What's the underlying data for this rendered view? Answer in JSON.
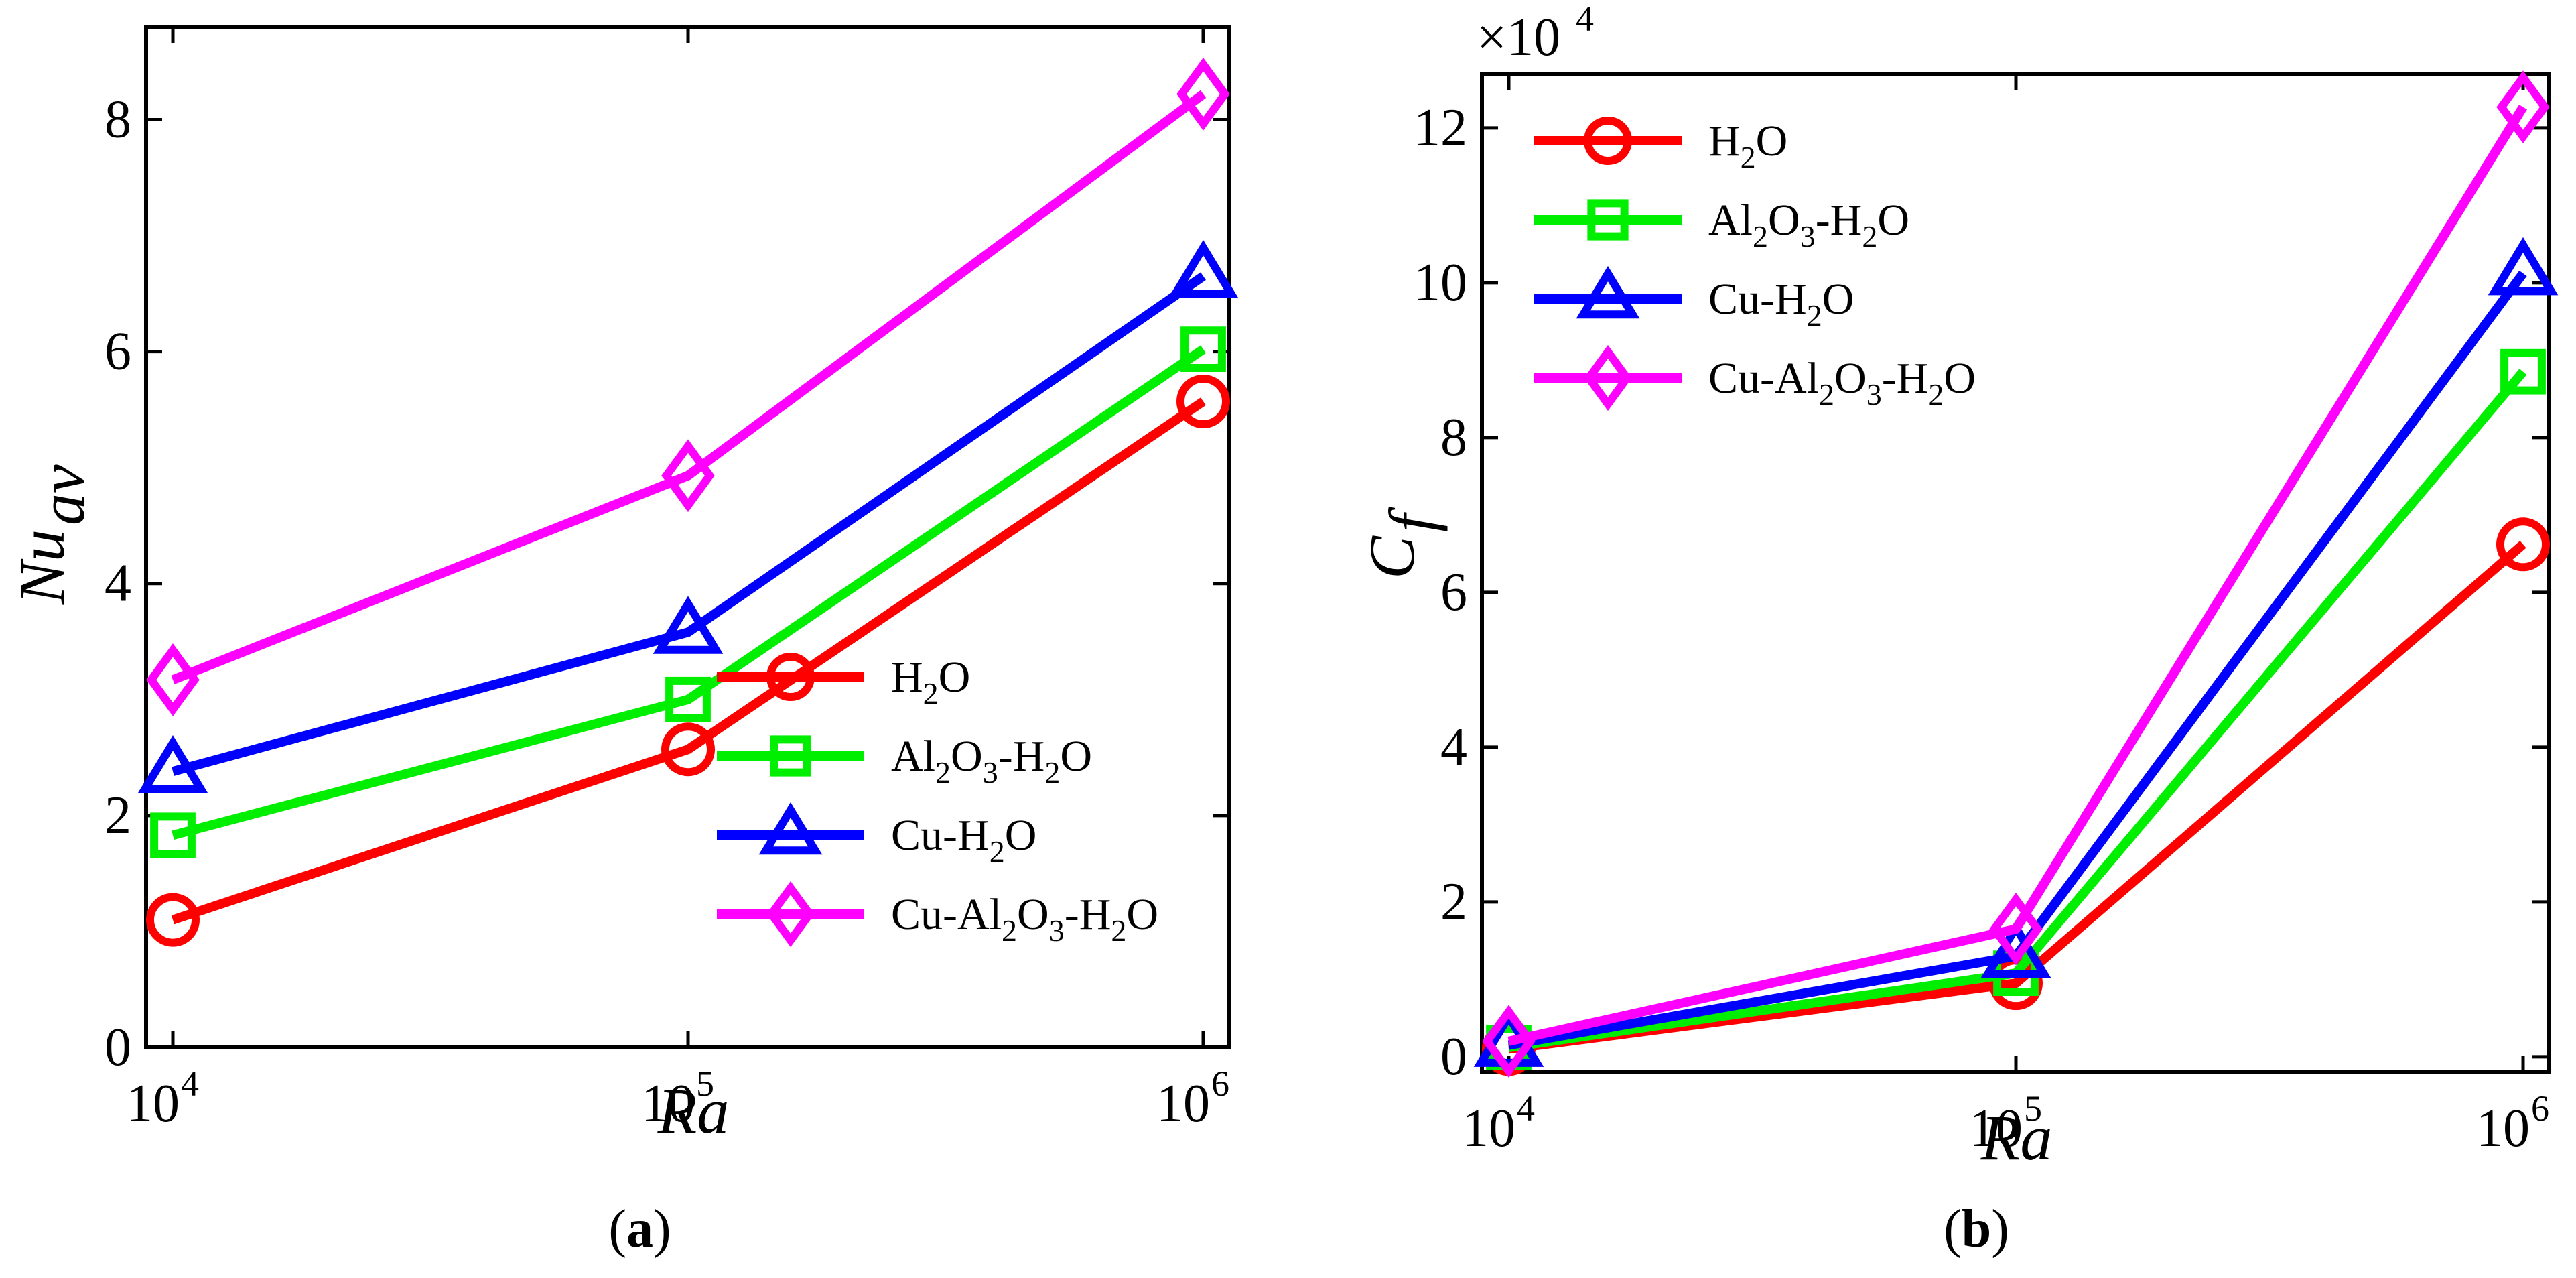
{
  "chart_data": [
    {
      "id": "a",
      "type": "line",
      "caption_letter": "a",
      "xlabel": "Ra",
      "ylabel": "Nu",
      "ylabel_sub": "av",
      "xscale": "log",
      "x": [
        10000,
        100000,
        1000000
      ],
      "xticks": [
        {
          "base": "10",
          "exp": "4",
          "value": 10000
        },
        {
          "base": "10",
          "exp": "5",
          "value": 100000
        },
        {
          "base": "10",
          "exp": "6",
          "value": 1000000
        }
      ],
      "ylim": [
        0,
        8.8
      ],
      "yticks": [
        0,
        2,
        4,
        6,
        8
      ],
      "exponent_label": "",
      "legend_position": "bottom-right",
      "series": [
        {
          "name": "H2O",
          "color": "#ff0000",
          "marker": "circle",
          "values": [
            1.1,
            2.57,
            5.57
          ]
        },
        {
          "name": "Al2O3-H2O",
          "color": "#00ee00",
          "marker": "square",
          "values": [
            1.83,
            3.0,
            6.02
          ]
        },
        {
          "name": "Cu-H2O",
          "color": "#0000ff",
          "marker": "triangle",
          "values": [
            2.38,
            3.58,
            6.65
          ]
        },
        {
          "name": "Cu-Al2O3-H2O",
          "color": "#ff00ff",
          "marker": "diamond",
          "values": [
            3.17,
            4.93,
            8.22
          ]
        }
      ]
    },
    {
      "id": "b",
      "type": "line",
      "caption_letter": "b",
      "xlabel": "Ra",
      "ylabel": "C",
      "ylabel_sub": "f",
      "xscale": "log",
      "x": [
        10000,
        100000,
        1000000
      ],
      "xticks": [
        {
          "base": "10",
          "exp": "4",
          "value": 10000
        },
        {
          "base": "10",
          "exp": "5",
          "value": 100000
        },
        {
          "base": "10",
          "exp": "6",
          "value": 1000000
        }
      ],
      "ylim": [
        -0.2,
        12.7
      ],
      "yticks": [
        0,
        2,
        4,
        6,
        8,
        10,
        12
      ],
      "exponent_label": {
        "prefix": "×10",
        "exp": "4"
      },
      "legend_position": "top-left",
      "series": [
        {
          "name": "H2O",
          "color": "#ff0000",
          "marker": "circle",
          "values": [
            0.1,
            0.95,
            6.62
          ]
        },
        {
          "name": "Al2O3-H2O",
          "color": "#00ee00",
          "marker": "square",
          "values": [
            0.12,
            1.08,
            8.85
          ]
        },
        {
          "name": "Cu-H2O",
          "color": "#0000ff",
          "marker": "triangle",
          "values": [
            0.15,
            1.3,
            10.12
          ]
        },
        {
          "name": "Cu-Al2O3-H2O",
          "color": "#ff00ff",
          "marker": "diamond",
          "values": [
            0.2,
            1.65,
            12.27
          ]
        }
      ]
    }
  ]
}
